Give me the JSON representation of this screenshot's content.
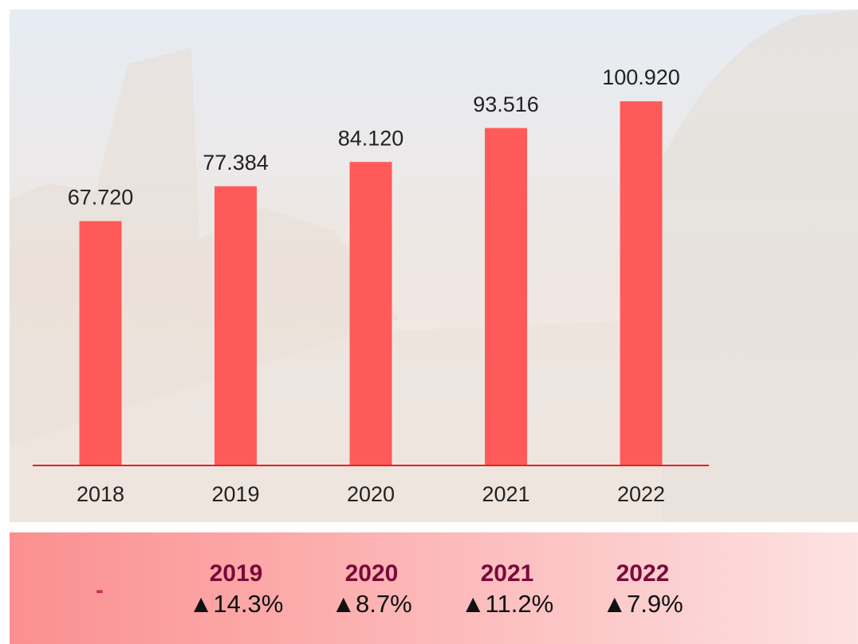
{
  "chart_data": {
    "type": "bar",
    "categories": [
      "2018",
      "2019",
      "2020",
      "2021",
      "2022"
    ],
    "values": [
      67720,
      77384,
      84120,
      93516,
      100920
    ],
    "value_labels": [
      "67.720",
      "77.384",
      "84.120",
      "93.516",
      "100.920"
    ],
    "color": "#ff5a5a",
    "ylim": [
      0,
      110000
    ]
  },
  "summary": {
    "first": "-",
    "changes": [
      {
        "year": "2019",
        "change": "▲14.3%"
      },
      {
        "year": "2020",
        "change": "▲8.7%"
      },
      {
        "year": "2021",
        "change": "▲11.2%"
      },
      {
        "year": "2022",
        "change": "▲7.9%"
      }
    ]
  }
}
